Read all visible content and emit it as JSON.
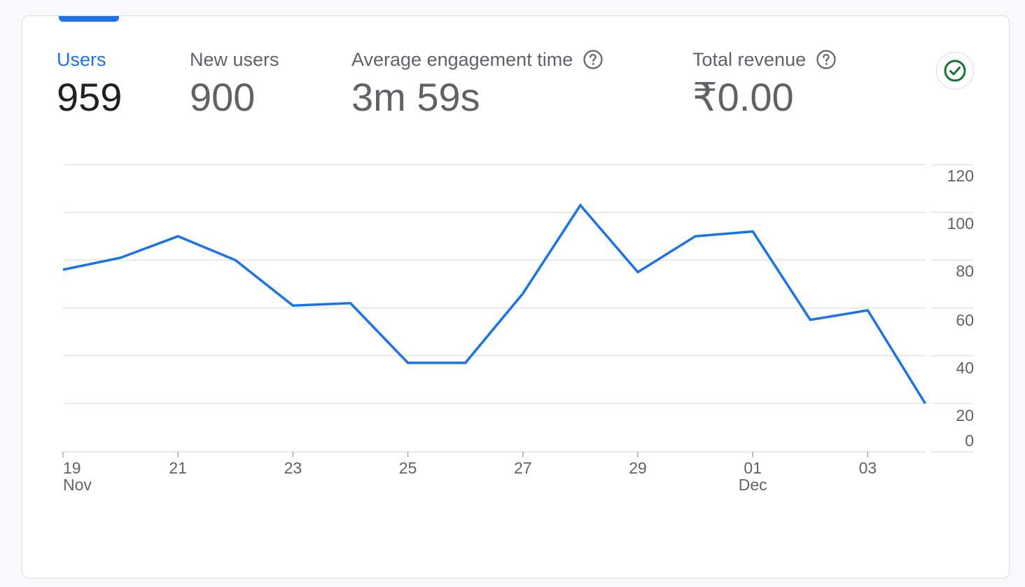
{
  "metrics": [
    {
      "label": "Users",
      "value": "959",
      "active": true,
      "help": false
    },
    {
      "label": "New users",
      "value": "900",
      "active": false,
      "help": false
    },
    {
      "label": "Average engagement time",
      "value": "3m 59s",
      "active": false,
      "help": true
    },
    {
      "label": "Total revenue",
      "value": "₹0.00",
      "active": false,
      "help": true
    }
  ],
  "status_icon": "check-circle-icon",
  "colors": {
    "accent": "#1a73e8",
    "check": "#137333",
    "grid": "#e0e0e0"
  },
  "chart_data": {
    "type": "line",
    "title": "",
    "xlabel": "",
    "ylabel": "",
    "ylim": [
      0,
      120
    ],
    "y_ticks": [
      "120",
      "100",
      "80",
      "60",
      "40",
      "20",
      "0"
    ],
    "x_ticks": [
      {
        "day": "19",
        "month": "Nov"
      },
      {
        "day": "21",
        "month": ""
      },
      {
        "day": "23",
        "month": ""
      },
      {
        "day": "25",
        "month": ""
      },
      {
        "day": "27",
        "month": ""
      },
      {
        "day": "29",
        "month": ""
      },
      {
        "day": "01",
        "month": "Dec"
      },
      {
        "day": "03",
        "month": ""
      }
    ],
    "grid": true,
    "series": [
      {
        "x": [
          "2023-11-19",
          "2023-11-20",
          "2023-11-21",
          "2023-11-22",
          "2023-11-23",
          "2023-11-24",
          "2023-11-25",
          "2023-11-26",
          "2023-11-27",
          "2023-11-28",
          "2023-11-29",
          "2023-11-30",
          "2023-12-01",
          "2023-12-02",
          "2023-12-03",
          "2023-12-04"
        ],
        "values": [
          76,
          81,
          90,
          80,
          61,
          62,
          37,
          37,
          66,
          103,
          75,
          90,
          92,
          55,
          59,
          20
        ]
      }
    ]
  }
}
